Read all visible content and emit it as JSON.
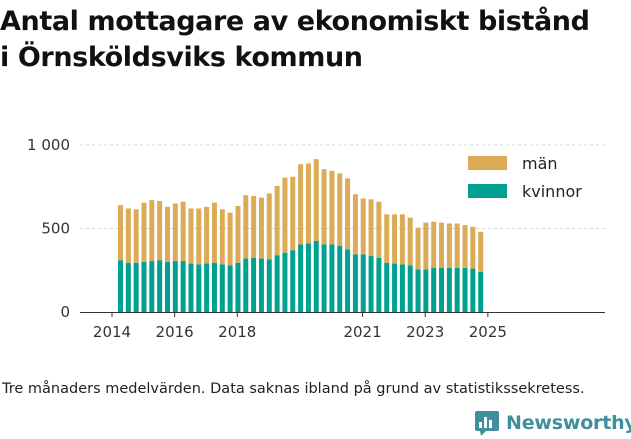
{
  "chart_data": {
    "type": "bar",
    "stacked": true,
    "title_lines": [
      "Antal mottagare av ekonomiskt bistånd",
      "i Örnsköldsviks kommun"
    ],
    "xlabel": "",
    "ylabel": "",
    "ylim": [
      0,
      1000
    ],
    "yticks": [
      0,
      500,
      1000
    ],
    "ytick_labels": [
      "0",
      "500",
      "1 000"
    ],
    "xtick_labels": [
      {
        "label": "2014",
        "at_index": 0
      },
      {
        "label": "2016",
        "at_index": 8
      },
      {
        "label": "2018",
        "at_index": 16
      },
      {
        "label": "2021",
        "at_index": 32
      },
      {
        "label": "2023",
        "at_index": 40
      },
      {
        "label": "2025",
        "at_index": 48
      }
    ],
    "grid": true,
    "legend_position": "top-right",
    "series": [
      {
        "name": "kvinnor",
        "color": "#00a190",
        "values": [
          310,
          295,
          295,
          300,
          305,
          310,
          300,
          305,
          305,
          290,
          285,
          290,
          295,
          285,
          280,
          295,
          320,
          325,
          320,
          315,
          340,
          355,
          370,
          405,
          410,
          425,
          405,
          405,
          395,
          375,
          345,
          345,
          335,
          325,
          295,
          290,
          285,
          280,
          255,
          255,
          265,
          265,
          265,
          265,
          265,
          260,
          240
        ]
      },
      {
        "name": "män",
        "color": "#dcab57",
        "values": [
          330,
          325,
          320,
          355,
          365,
          355,
          330,
          345,
          355,
          330,
          335,
          340,
          360,
          330,
          315,
          340,
          380,
          370,
          365,
          395,
          415,
          450,
          440,
          480,
          480,
          490,
          450,
          440,
          435,
          425,
          360,
          335,
          340,
          335,
          290,
          295,
          300,
          285,
          250,
          280,
          275,
          270,
          265,
          265,
          255,
          250,
          240
        ]
      }
    ]
  },
  "footnote": "Tre månaders medelvärden. Data saknas ibland på grund av statistikssekretess.",
  "brand": {
    "name": "Newsworthy",
    "icon": "bar-chart-logo-icon",
    "color": "#3f8f9d"
  }
}
